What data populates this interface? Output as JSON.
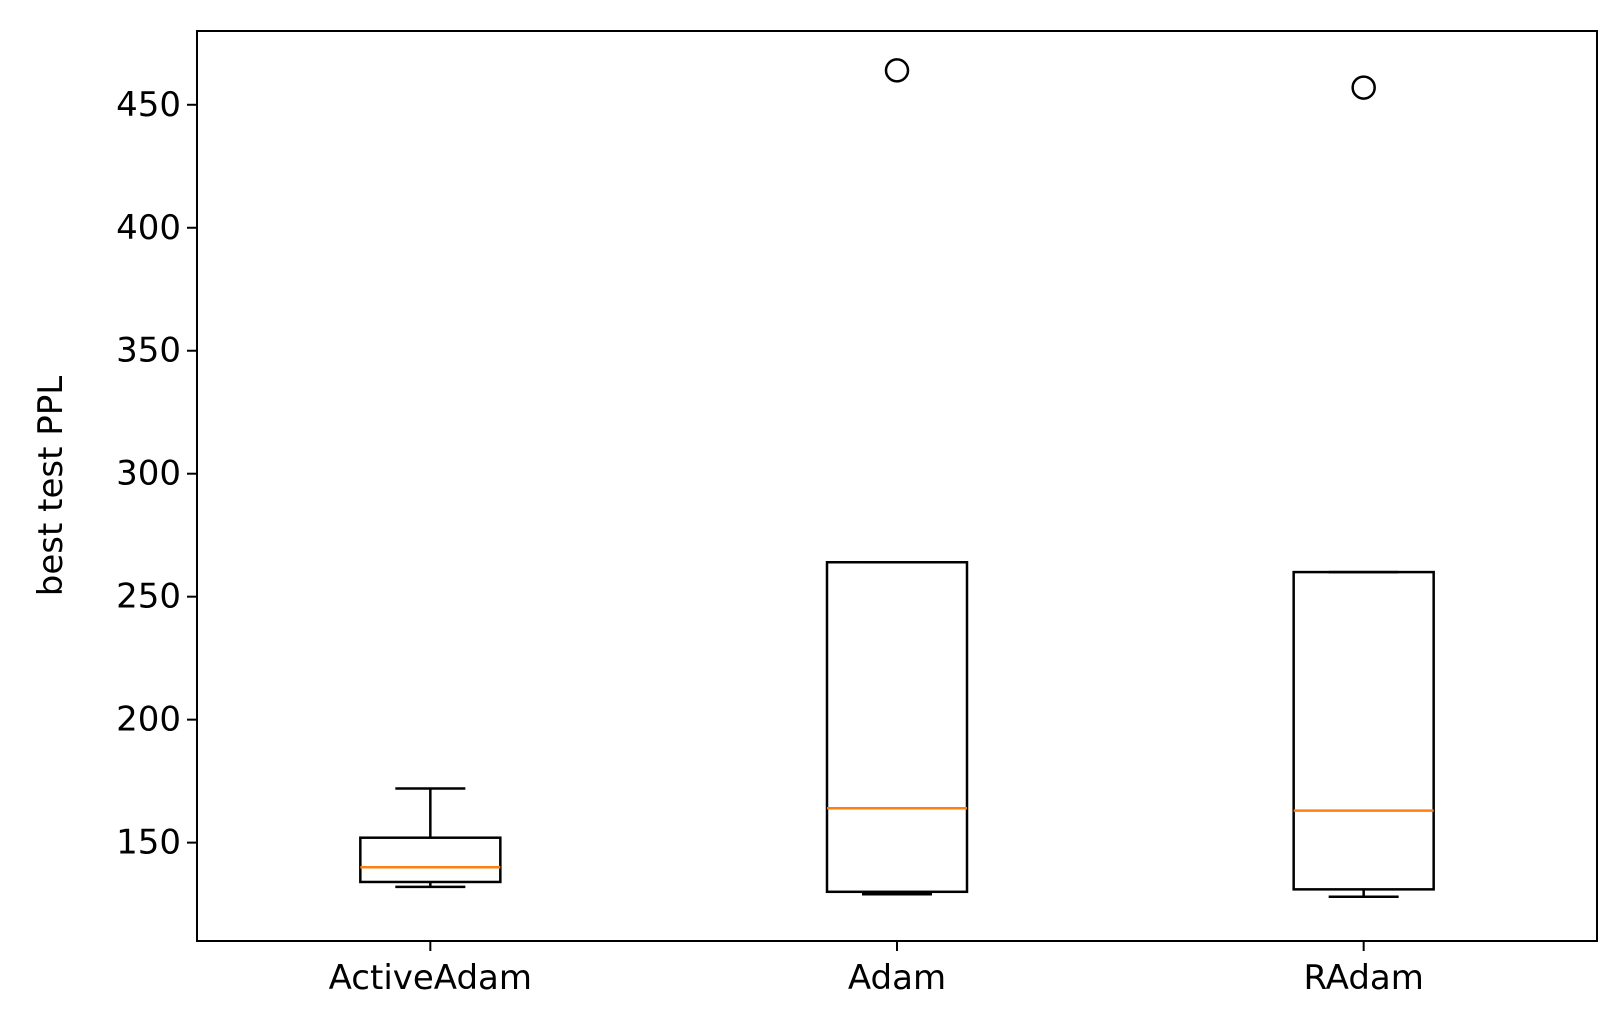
{
  "chart_data": {
    "type": "box",
    "title": "",
    "xlabel": "",
    "ylabel": "best test PPL",
    "ylim": [
      110,
      480
    ],
    "yticks": [
      150,
      200,
      250,
      300,
      350,
      400,
      450
    ],
    "categories": [
      "ActiveAdam",
      "Adam",
      "RAdam"
    ],
    "boxes": [
      {
        "category": "ActiveAdam",
        "whisker_low": 132,
        "q1": 134,
        "median": 140,
        "q3": 152,
        "whisker_high": 172,
        "outliers": []
      },
      {
        "category": "Adam",
        "whisker_low": 129,
        "q1": 130,
        "median": 164,
        "q3": 264,
        "whisker_high": 264,
        "outliers": [
          464
        ]
      },
      {
        "category": "RAdam",
        "whisker_low": 128,
        "q1": 131,
        "median": 163,
        "q3": 260,
        "whisker_high": 260,
        "outliers": [
          457
        ]
      }
    ],
    "grid": false,
    "legend": "none",
    "colors": {
      "box": "#000000",
      "median": "#ff7f0e",
      "outlier": "#000000"
    }
  }
}
